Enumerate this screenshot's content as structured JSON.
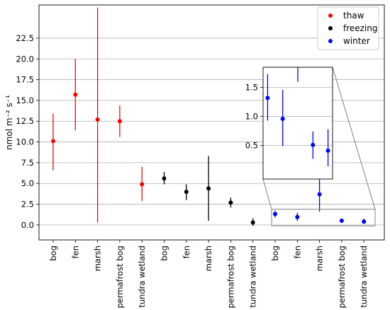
{
  "chart_data": {
    "type": "scatter",
    "ylabel": "nmol m⁻² s⁻¹",
    "ylim": [
      -1.8,
      26.5
    ],
    "yticks": [
      "0.0",
      "2.5",
      "5.0",
      "7.5",
      "10.0",
      "12.5",
      "15.0",
      "17.5",
      "20.0",
      "22.5"
    ],
    "grid": "horizontal",
    "legend_position": "top-right",
    "categories": [
      "bog",
      "fen",
      "marsh",
      "permafrost bog",
      "tundra wetland",
      "bog",
      "fen",
      "marsh",
      "permafrost bog",
      "tundra wetland",
      "bog",
      "fen",
      "marsh",
      "permafrost bog",
      "tundra wetland"
    ],
    "series": [
      {
        "name": "thaw",
        "color": "#ff0000",
        "points": [
          {
            "x": "bog",
            "y": 10.1,
            "low": 6.6,
            "high": 13.4
          },
          {
            "x": "fen",
            "y": 15.7,
            "low": 11.4,
            "high": 20.0
          },
          {
            "x": "marsh",
            "y": 12.7,
            "low": 0.3,
            "high": 26.2
          },
          {
            "x": "permafrost bog",
            "y": 12.5,
            "low": 10.6,
            "high": 14.4
          },
          {
            "x": "tundra wetland",
            "y": 4.9,
            "low": 2.9,
            "high": 7.0
          }
        ]
      },
      {
        "name": "freezing",
        "color": "#000000",
        "points": [
          {
            "x": "bog",
            "y": 5.6,
            "low": 4.9,
            "high": 6.4
          },
          {
            "x": "fen",
            "y": 4.0,
            "low": 3.0,
            "high": 4.9
          },
          {
            "x": "marsh",
            "y": 4.4,
            "low": 0.5,
            "high": 8.3
          },
          {
            "x": "permafrost bog",
            "y": 2.7,
            "low": 2.1,
            "high": 3.3
          },
          {
            "x": "tundra wetland",
            "y": 0.3,
            "low": -0.1,
            "high": 0.8
          }
        ]
      },
      {
        "name": "winter",
        "color": "#0000ff",
        "points": [
          {
            "x": "bog",
            "y": 1.32,
            "low": 0.93,
            "high": 1.73
          },
          {
            "x": "fen",
            "y": 0.96,
            "low": 0.49,
            "high": 1.46
          },
          {
            "x": "marsh",
            "y": 3.7,
            "low": 1.6,
            "high": 5.9
          },
          {
            "x": "permafrost bog",
            "y": 0.51,
            "low": 0.27,
            "high": 0.74
          },
          {
            "x": "tundra wetland",
            "y": 0.41,
            "low": 0.14,
            "high": 0.78
          }
        ]
      }
    ],
    "inset": {
      "xlim": [
        -0.3,
        4.3
      ],
      "ylim": [
        -0.08,
        1.85
      ],
      "yticks": [
        "0.5",
        "1.0",
        "1.5"
      ],
      "series": "winter",
      "points": [
        {
          "y": 1.32,
          "low": 0.93,
          "high": 1.73
        },
        {
          "y": 0.96,
          "low": 0.49,
          "high": 1.46
        },
        {
          "y": 3.7,
          "low": 1.6,
          "high": 5.9
        },
        {
          "y": 0.51,
          "low": 0.27,
          "high": 0.74
        },
        {
          "y": 0.41,
          "low": 0.14,
          "high": 0.78
        }
      ]
    }
  }
}
